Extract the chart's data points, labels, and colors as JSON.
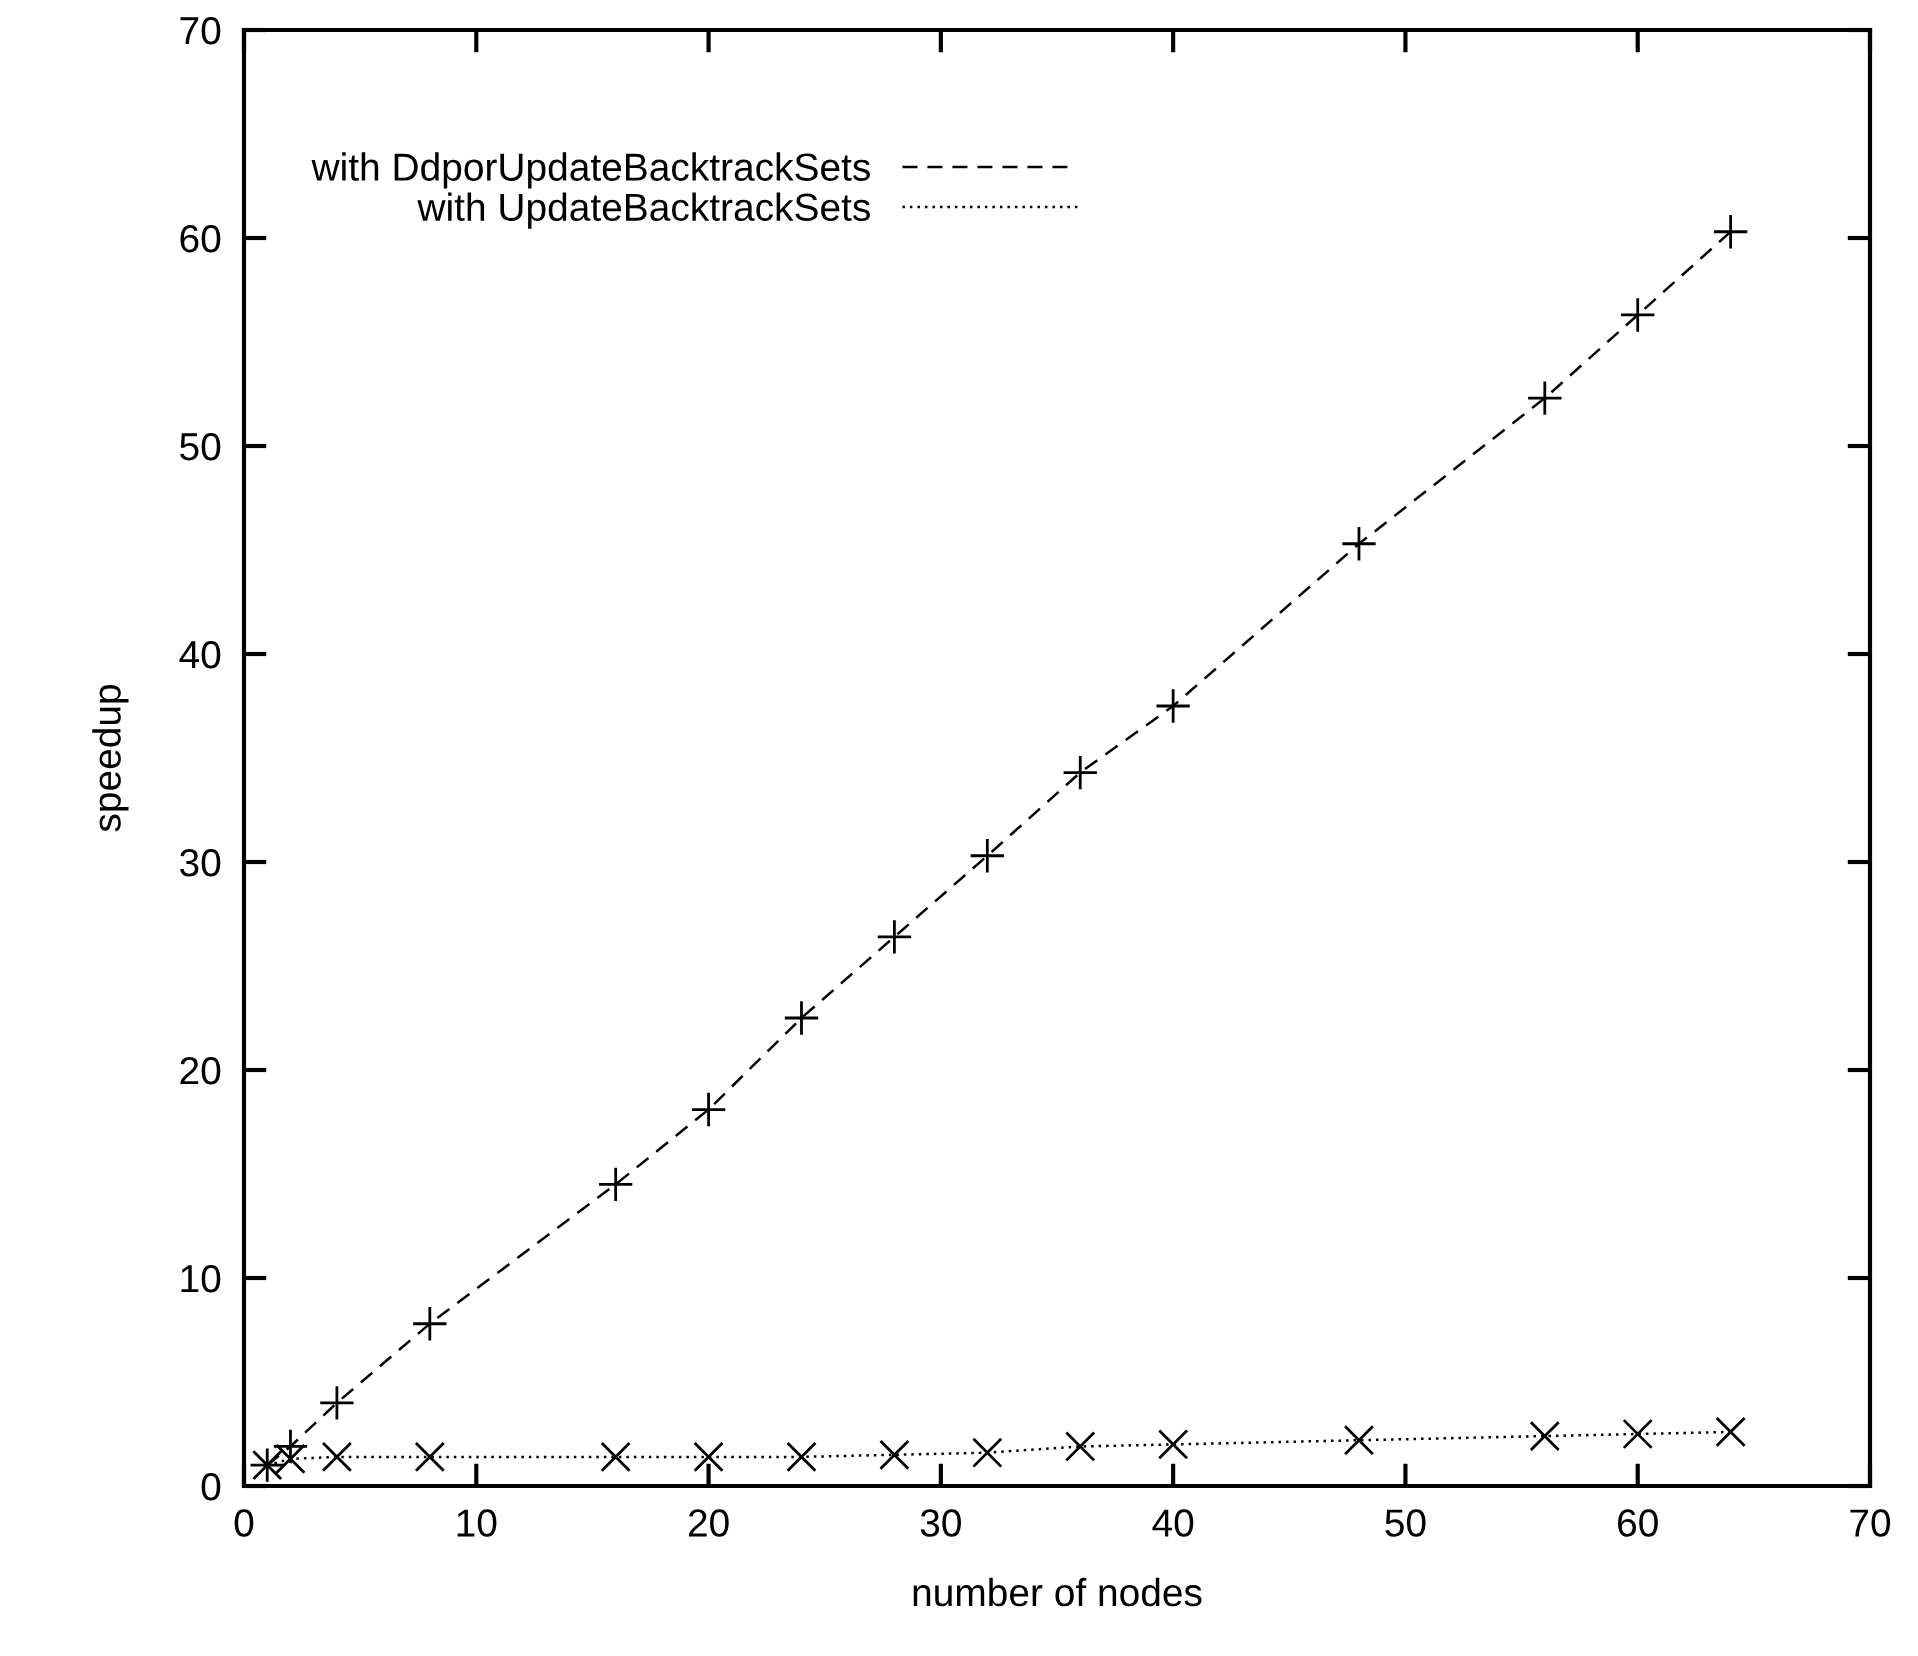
{
  "chart_data": {
    "type": "line",
    "xlabel": "number of nodes",
    "ylabel": "speedup",
    "xlim": [
      0,
      70
    ],
    "ylim": [
      0,
      70
    ],
    "xticks": [
      0,
      10,
      20,
      30,
      40,
      50,
      60,
      70
    ],
    "yticks": [
      0,
      10,
      20,
      30,
      40,
      50,
      60,
      70
    ],
    "grid": false,
    "legend": "top left",
    "series": [
      {
        "name": "with DdporUpdateBacktrackSets",
        "color": "#000000",
        "marker": "plus",
        "line_style": "dashed",
        "x": [
          1,
          2,
          4,
          8,
          16,
          20,
          24,
          28,
          32,
          36,
          40,
          48,
          56,
          60,
          64
        ],
        "values": [
          1,
          1.9,
          4.0,
          7.8,
          14.5,
          18.1,
          22.5,
          26.4,
          30.3,
          34.3,
          37.5,
          45.3,
          52.3,
          56.3,
          60.3
        ]
      },
      {
        "name": "with UpdateBacktrackSets",
        "color": "#000000",
        "marker": "cross",
        "line_style": "dotted",
        "x": [
          1,
          2,
          4,
          8,
          16,
          20,
          24,
          28,
          32,
          36,
          40,
          48,
          56,
          60,
          64
        ],
        "values": [
          1,
          1.3,
          1.4,
          1.4,
          1.4,
          1.4,
          1.4,
          1.5,
          1.6,
          1.9,
          2.0,
          2.2,
          2.4,
          2.5,
          2.6
        ]
      }
    ]
  }
}
